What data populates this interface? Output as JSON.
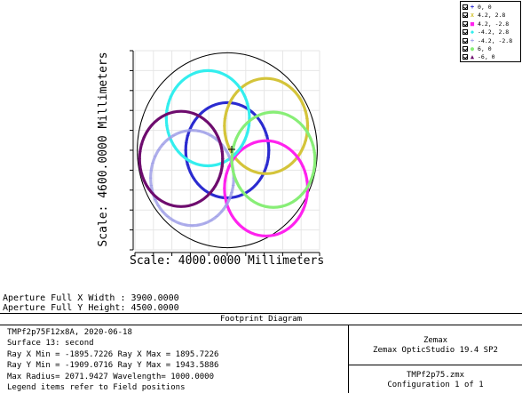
{
  "chart_data": {
    "type": "scatter",
    "title": "Footprint Diagram",
    "xlabel": "Scale: 4000.0000 Millimeters",
    "ylabel": "Scale: 4600.0000 Millimeters",
    "xlim": [
      -2000,
      2000
    ],
    "ylim": [
      -2300,
      2300
    ],
    "aperture": {
      "half_x": 1950,
      "half_y": 2250
    },
    "series": [
      {
        "name": "0, 0",
        "marker": "+",
        "color": "#2b2bd0",
        "center": [
          0,
          0
        ],
        "rx": 900,
        "ry": 1100
      },
      {
        "name": "4.2, 2.8",
        "marker": "x",
        "color": "#d4c43a",
        "center": [
          840,
          560
        ],
        "rx": 900,
        "ry": 1100
      },
      {
        "name": "4.2, -2.8",
        "marker": "■",
        "color": "#ff22ee",
        "center": [
          840,
          -880
        ],
        "rx": 900,
        "ry": 1100
      },
      {
        "name": "-4.2, 2.8",
        "marker": "◆",
        "color": "#33eeee",
        "center": [
          -420,
          740
        ],
        "rx": 900,
        "ry": 1100
      },
      {
        "name": "-4.2, -2.8",
        "marker": "+",
        "color": "#a0a0e8",
        "center": [
          -760,
          -640
        ],
        "rx": 900,
        "ry": 1100
      },
      {
        "name": "6, 0",
        "marker": "●",
        "color": "#88ee77",
        "center": [
          1000,
          -220
        ],
        "rx": 900,
        "ry": 1100
      },
      {
        "name": "-6, 0",
        "marker": "▲",
        "color": "#6e0c6e",
        "center": [
          -1000,
          -200
        ],
        "rx": 900,
        "ry": 1100
      }
    ],
    "chief_ray_marker": "+"
  },
  "aperture_text": {
    "x_width": "Aperture Full X Width : 3900.0000",
    "y_height": "Aperture Full Y Height: 4500.0000"
  },
  "info": {
    "title": "Footprint Diagram",
    "lines": [
      "TMPf2p75F12x8A, 2020-06-18",
      "Surface 13: second",
      "Ray X Min = -1895.7226 Ray X Max = 1895.7226",
      "Ray Y Min = -1909.0716 Ray Y Max = 1943.5886",
      "Max Radius= 2071.9427 Wavelength= 1000.0000",
      "Legend items refer to Field positions"
    ],
    "company": "Zemax",
    "product": "Zemax OpticStudio 19.4 SP2",
    "file": "TMPf2p75.zmx",
    "configuration": "Configuration 1 of 1"
  }
}
